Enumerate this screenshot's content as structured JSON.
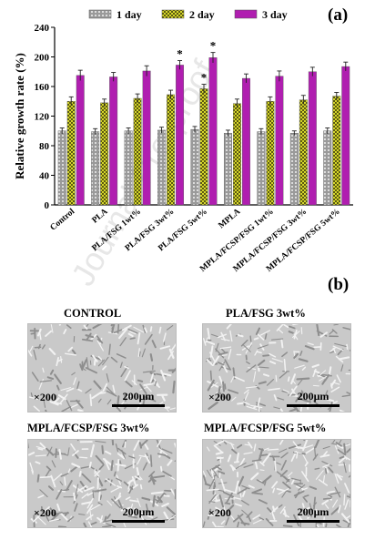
{
  "panel_a_label": "(a)",
  "panel_b_label": "(b)",
  "watermark": "Journal Pre-proof",
  "colors": {
    "day1": "#9a9a9a",
    "day2": "#d6d62a",
    "day3": "#b01eb0"
  },
  "chart_data": {
    "type": "bar",
    "ylabel": "Relative growth rate (%)",
    "xlabel": "",
    "ylim": [
      0,
      240
    ],
    "yticks": [
      "0",
      "40",
      "80",
      "120",
      "160",
      "200",
      "240"
    ],
    "legend_position": "top",
    "categories": [
      "Control",
      "PLA",
      "PLA/FSG 1wt%",
      "PLA/FSG 3wt%",
      "PLA/FSG 5wt%",
      "MPLA",
      "MPLA/FCSP/FSG 1wt%",
      "MPLA/FCSP/FSG 3wt%",
      "MPLA/FCSP/FSG 5wt%"
    ],
    "series": [
      {
        "name": "1 day",
        "values": [
          100,
          99,
          100,
          101,
          102,
          97,
          99,
          97,
          100
        ],
        "errors": [
          4,
          4,
          4,
          4,
          4,
          4,
          4,
          3,
          4
        ]
      },
      {
        "name": "2 day",
        "values": [
          140,
          138,
          144,
          149,
          157,
          137,
          140,
          142,
          147
        ],
        "errors": [
          6,
          5,
          6,
          6,
          6,
          6,
          6,
          6,
          5
        ]
      },
      {
        "name": "3 day",
        "values": [
          175,
          173,
          181,
          189,
          199,
          171,
          174,
          180,
          187
        ],
        "errors": [
          7,
          6,
          7,
          6,
          7,
          6,
          7,
          6,
          6
        ]
      }
    ],
    "annotations": [
      {
        "category": "PLA/FSG 3wt%",
        "series": "3 day",
        "text": "*"
      },
      {
        "category": "PLA/FSG 5wt%",
        "series": "2 day",
        "text": "*"
      },
      {
        "category": "PLA/FSG 5wt%",
        "series": "3 day",
        "text": "*"
      }
    ]
  },
  "micrographs": [
    {
      "title": "CONTROL",
      "magnification": "×200",
      "scale_bar": "200μm"
    },
    {
      "title": "PLA/FSG 3wt%",
      "magnification": "×200",
      "scale_bar": "200μm"
    },
    {
      "title": "MPLA/FCSP/FSG 3wt%",
      "magnification": "×200",
      "scale_bar": "200μm"
    },
    {
      "title": "MPLA/FCSP/FSG 5wt%",
      "magnification": "×200",
      "scale_bar": "200μm"
    }
  ]
}
